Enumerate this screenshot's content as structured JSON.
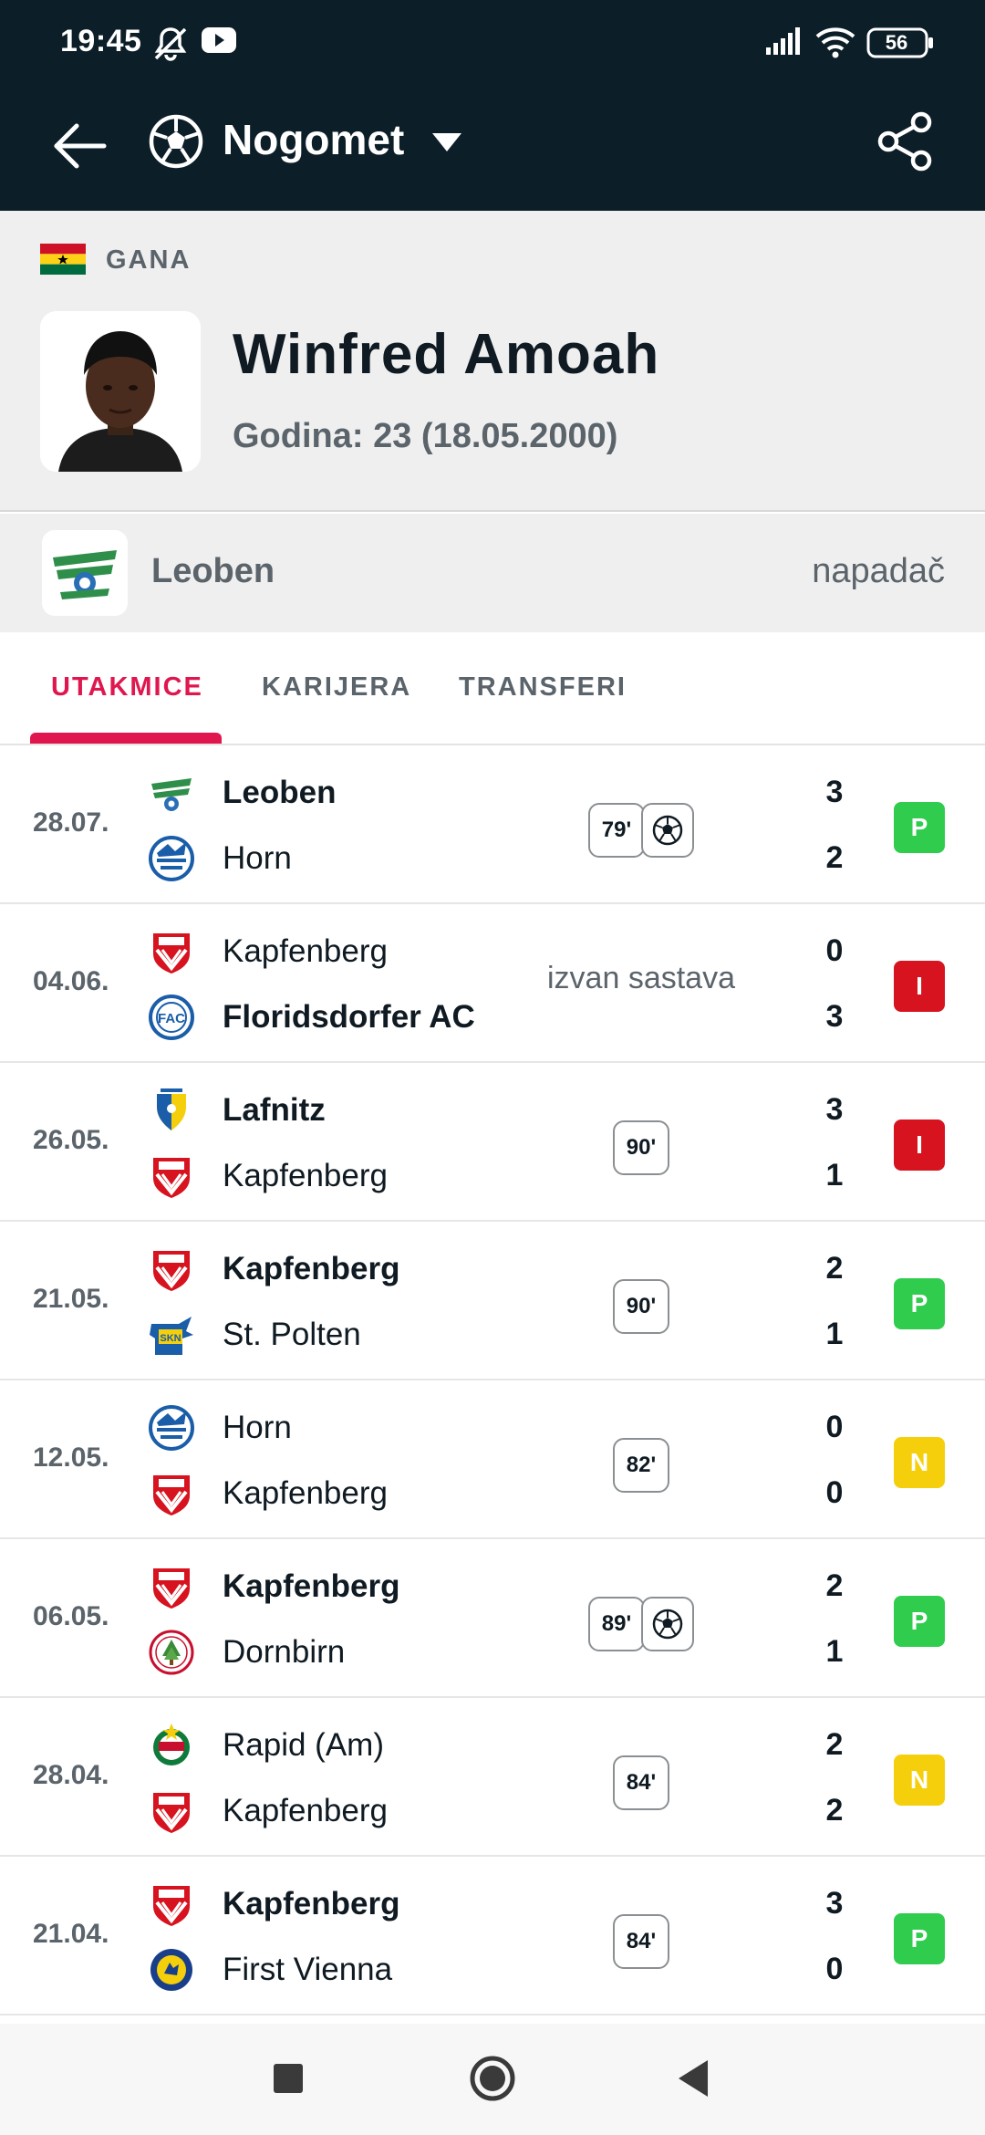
{
  "status_bar": {
    "time": "19:45",
    "battery": "56"
  },
  "app_bar": {
    "title": "Nogomet"
  },
  "player": {
    "country": "GANA",
    "name": "Winfred Amoah",
    "age": "Godina: 23 (18.05.2000)"
  },
  "club": {
    "name": "Leoben",
    "position": "napadač"
  },
  "tabs": [
    {
      "label": "UTAKMICE"
    },
    {
      "label": "KARIJERA"
    },
    {
      "label": "TRANSFERI"
    }
  ],
  "matches": [
    {
      "date": "28.07.",
      "home": "Leoben",
      "away": "Horn",
      "home_score": "3",
      "away_score": "2",
      "minute": "79'",
      "note": "",
      "result": "P",
      "result_color": "#2fcc4e"
    },
    {
      "date": "04.06.",
      "home": "Kapfenberg",
      "away": "Floridsdorfer AC",
      "home_score": "0",
      "away_score": "3",
      "minute": "",
      "note": "izvan sastava",
      "result": "I",
      "result_color": "#d6131f"
    },
    {
      "date": "26.05.",
      "home": "Lafnitz",
      "away": "Kapfenberg",
      "home_score": "3",
      "away_score": "1",
      "minute": "90'",
      "note": "",
      "result": "I",
      "result_color": "#d6131f"
    },
    {
      "date": "21.05.",
      "home": "Kapfenberg",
      "away": "St. Polten",
      "home_score": "2",
      "away_score": "1",
      "minute": "90'",
      "note": "",
      "result": "P",
      "result_color": "#2fcc4e"
    },
    {
      "date": "12.05.",
      "home": "Horn",
      "away": "Kapfenberg",
      "home_score": "0",
      "away_score": "0",
      "minute": "82'",
      "note": "",
      "result": "N",
      "result_color": "#f5cf0b"
    },
    {
      "date": "06.05.",
      "home": "Kapfenberg",
      "away": "Dornbirn",
      "home_score": "2",
      "away_score": "1",
      "minute": "89'",
      "note": "",
      "result": "P",
      "result_color": "#2fcc4e"
    },
    {
      "date": "28.04.",
      "home": "Rapid (Am)",
      "away": "Kapfenberg",
      "home_score": "2",
      "away_score": "2",
      "minute": "84'",
      "note": "",
      "result": "N",
      "result_color": "#f5cf0b"
    },
    {
      "date": "21.04.",
      "home": "Kapfenberg",
      "away": "First Vienna",
      "home_score": "3",
      "away_score": "0",
      "minute": "84'",
      "note": "",
      "result": "P",
      "result_color": "#2fcc4e"
    }
  ],
  "colors": {
    "header_bg": "#0c1e28",
    "accent": "#e0174e"
  }
}
